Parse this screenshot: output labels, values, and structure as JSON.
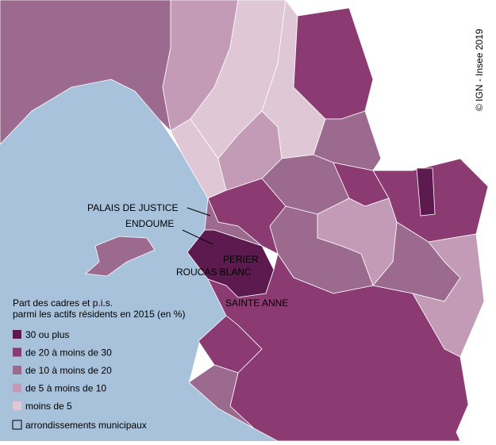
{
  "map": {
    "legend": {
      "title_lines": [
        "Part des cadres et p.i.s.",
        "parmi les actifs résidents en 2015 (en %)"
      ],
      "items": [
        {
          "label": "30 ou plus",
          "color": "#5c1a4e"
        },
        {
          "label": "de 20 à moins de 30",
          "color": "#8b3a72"
        },
        {
          "label": "de 10 à moins de 20",
          "color": "#9d6a8f"
        },
        {
          "label": "de 5 à moins de 10",
          "color": "#c39bb6"
        },
        {
          "label": "moins de 5",
          "color": "#dfc7d5"
        }
      ],
      "boundary_label": "arrondissements municipaux"
    },
    "places": [
      "PALAIS DE JUSTICE",
      "ENDOUME",
      "PERIER",
      "ROUCAS BLANC",
      "SAINTE ANNE"
    ],
    "credit": "© IGN - Insee 2019"
  }
}
